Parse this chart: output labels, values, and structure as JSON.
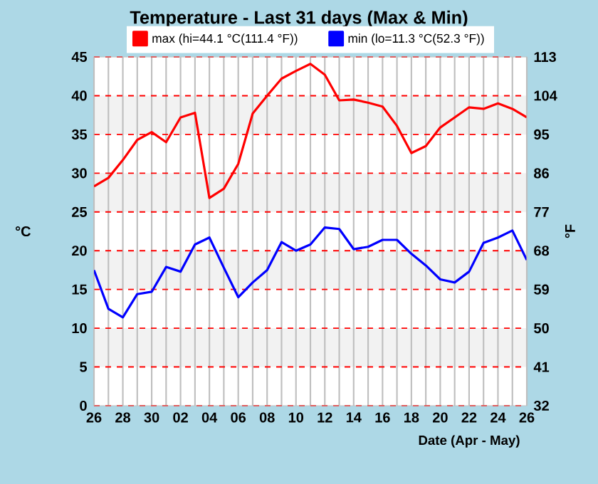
{
  "chart_data": {
    "type": "line",
    "title": "Temperature - Last 31 days (Max & Min)",
    "xlabel": "Date (Apr - May)",
    "ylabel": "°C",
    "y2label": "°F",
    "categories": [
      "26",
      null,
      "28",
      null,
      "30",
      null,
      "02",
      null,
      "04",
      null,
      "06",
      null,
      "08",
      null,
      "10",
      null,
      "12",
      null,
      "14",
      null,
      "16",
      null,
      "18",
      null,
      "20",
      null,
      "22",
      null,
      "24",
      null,
      "26"
    ],
    "series": [
      {
        "name": "max (hi=44.1 °C(111.4 °F))",
        "color": "#ff0000",
        "values": [
          28.3,
          29.4,
          31.7,
          34.3,
          35.3,
          34.0,
          37.2,
          37.8,
          26.8,
          28.0,
          31.2,
          37.7,
          40.0,
          42.2,
          43.2,
          44.1,
          42.7,
          39.4,
          39.5,
          39.1,
          38.6,
          36.1,
          32.6,
          33.5,
          35.9,
          37.2,
          38.5,
          38.3,
          39.0,
          38.3,
          37.2
        ]
      },
      {
        "name": "min (lo=11.3 °C(52.3 °F))",
        "color": "#0000ff",
        "values": [
          17.5,
          12.5,
          11.4,
          14.4,
          14.7,
          17.9,
          17.3,
          20.8,
          21.7,
          17.8,
          14.0,
          15.9,
          17.5,
          21.1,
          20.0,
          20.8,
          23.0,
          22.8,
          20.2,
          20.5,
          21.4,
          21.4,
          19.6,
          18.1,
          16.3,
          15.9,
          17.3,
          21.0,
          21.7,
          22.6,
          18.8
        ]
      }
    ],
    "ylim": [
      0,
      45
    ],
    "yticks": [
      0,
      5,
      10,
      15,
      20,
      25,
      30,
      35,
      40,
      45
    ],
    "y2lim": [
      32,
      113
    ],
    "y2ticks": [
      32,
      41,
      50,
      59,
      68,
      77,
      86,
      95,
      104,
      113
    ],
    "bands": [
      {
        "axis": "y",
        "from": 5,
        "to": 10,
        "color": "#f2f2f2"
      },
      {
        "axis": "y",
        "from": 15,
        "to": 20,
        "color": "#f2f2f2"
      },
      {
        "axis": "y",
        "from": 25,
        "to": 30,
        "color": "#f2f2f2"
      },
      {
        "axis": "y",
        "from": 35,
        "to": 40,
        "color": "#f2f2f2"
      }
    ],
    "grid": true,
    "legend": "top",
    "marker": "none",
    "line_style": "solid"
  }
}
